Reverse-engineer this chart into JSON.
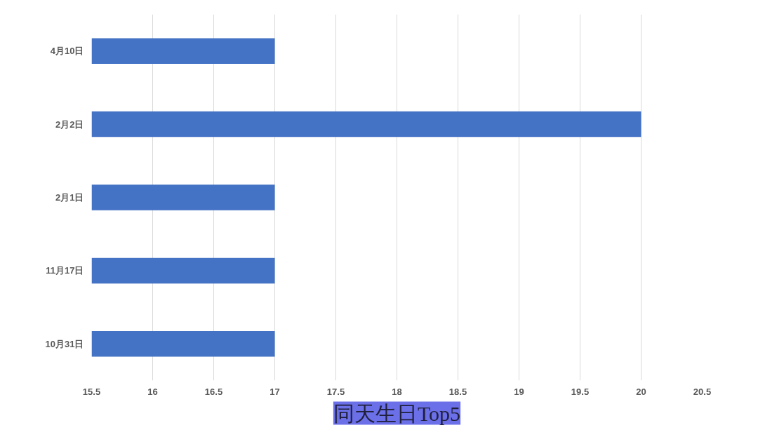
{
  "chart_data": {
    "type": "bar",
    "orientation": "horizontal",
    "title": "同天生日Top5",
    "categories": [
      "4月10日",
      "2月2日",
      "2月1日",
      "11月17日",
      "10月31日"
    ],
    "values": [
      17,
      20,
      17,
      17,
      17
    ],
    "color": "#4472c4",
    "xlim": [
      15.5,
      20.5
    ],
    "xticks": [
      15.5,
      16,
      16.5,
      17,
      17.5,
      18,
      18.5,
      19,
      19.5,
      20,
      20.5
    ],
    "grid": "x"
  }
}
